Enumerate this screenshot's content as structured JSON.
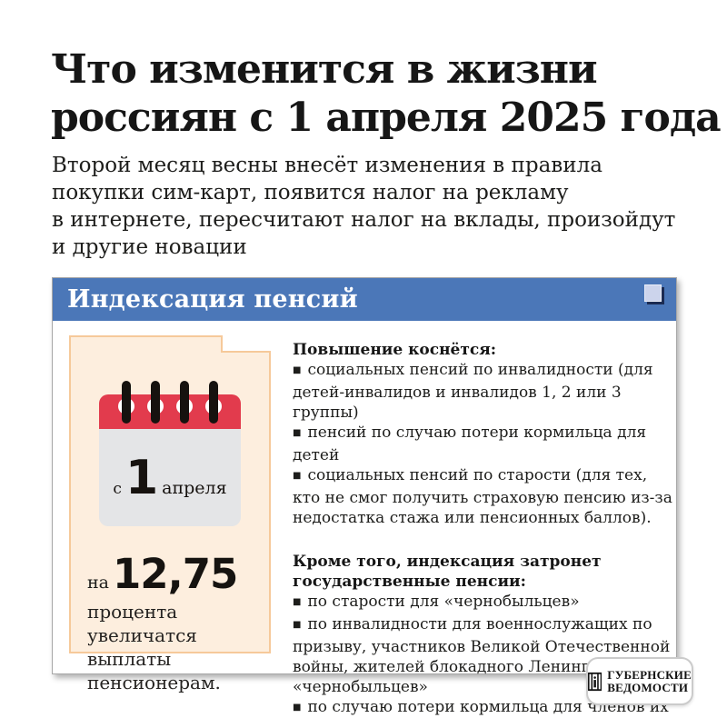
{
  "page": {
    "title_lines": [
      "Что изменится в жизни",
      "россиян с 1 апреля 2025 года"
    ],
    "subtitle_lines": [
      "Второй месяц весны внесёт изменения в правила",
      "покупки сим-карт, появится налог на рекламу",
      "в интернете, пересчитают налог на вклады, произойдут",
      "и другие новации"
    ]
  },
  "card": {
    "header": "Индексация пенсий",
    "bullet_char": "■",
    "note": {
      "date_prefix": "с",
      "date_number": "1",
      "date_suffix": "апреля",
      "stat_prefix": "на",
      "stat_value": "12,75",
      "stat_caption": "процента увеличатся выплаты пенсионерам."
    },
    "sections": [
      {
        "heading": "Повышение коснётся:",
        "items": [
          "социальных пенсий по инвалидности (для детей-инвалидов и инвалидов 1, 2 или 3 группы)",
          "пенсий по случаю потери кормильца для детей",
          "социальных пенсий по старости (для тех, кто не смог получить страховую пенсию из-за недостатка стажа или пенсионных баллов)."
        ]
      },
      {
        "heading": "Кроме того, индексация затронет государственные пенсии:",
        "items": [
          "по старости для «чернобыльцев»",
          "по инвалидности для военнослужащих по призыву, участников Великой Отечественной войны, жителей блокадного Ленинграда и «чернобыльцев»",
          "по случаю потери кормильца для членов их семей."
        ]
      }
    ]
  },
  "logo": {
    "line1": "ГУБЕРНСКИЕ",
    "line2": "ВЕДОМОСТИ"
  },
  "colors": {
    "header_blue": "#4b77b8",
    "note_bg": "#fdeede",
    "note_border": "#f6c99a",
    "calendar_red": "#e23b4d",
    "calendar_gray": "#e4e5e7",
    "text": "#1d1d1b"
  }
}
